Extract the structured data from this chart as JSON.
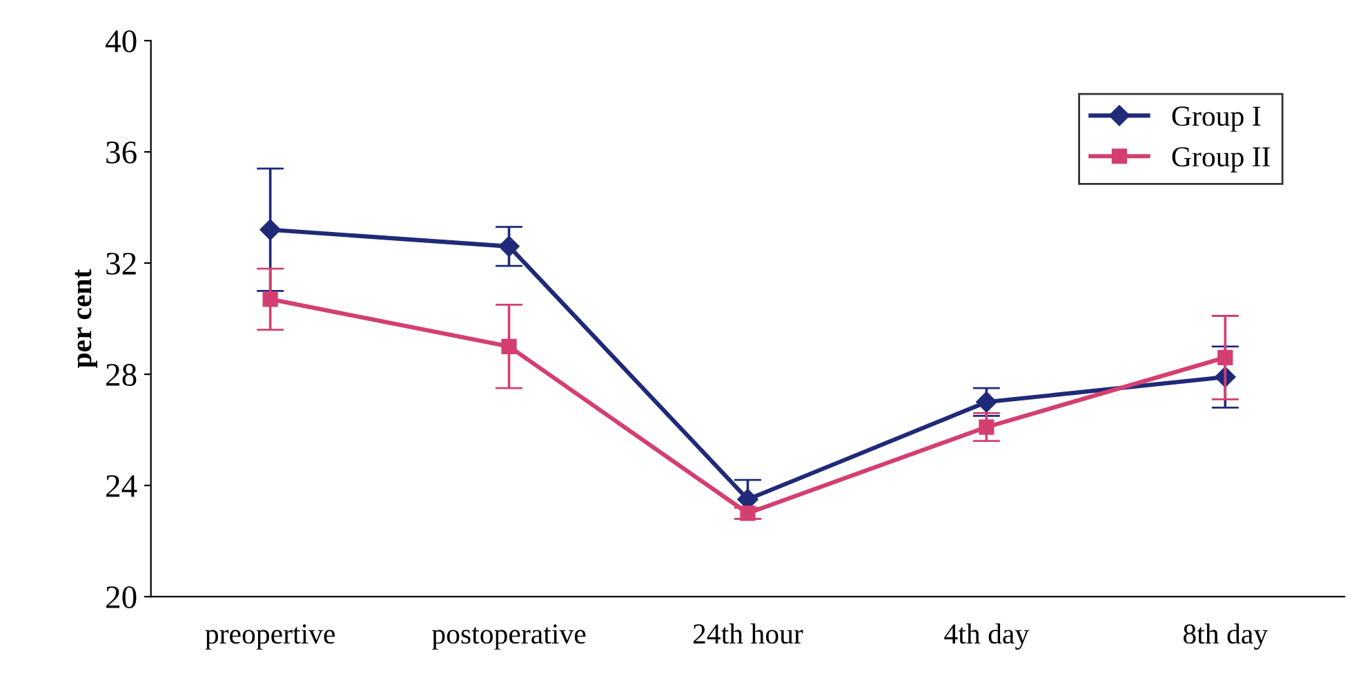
{
  "chart_data": {
    "type": "line",
    "ylabel": "per cent",
    "categories": [
      "preopertive",
      "postoperative",
      "24th hour",
      "4th day",
      "8th day"
    ],
    "series": [
      {
        "name": "Group I",
        "color": "#1f2a78",
        "marker": "diamond",
        "values": [
          33.2,
          32.6,
          23.5,
          27.0,
          27.9
        ],
        "errors": [
          2.2,
          0.7,
          0.7,
          0.5,
          1.1
        ]
      },
      {
        "name": "Group II",
        "color": "#d43f70",
        "marker": "square",
        "values": [
          30.7,
          29.0,
          23.0,
          26.1,
          28.6
        ],
        "errors": [
          1.1,
          1.5,
          0.2,
          0.5,
          1.5
        ]
      }
    ],
    "ylim": [
      20,
      40
    ],
    "yticks": [
      20,
      24,
      28,
      32,
      36,
      40
    ],
    "grid": false,
    "legend": "top right",
    "line_style": "solid"
  }
}
